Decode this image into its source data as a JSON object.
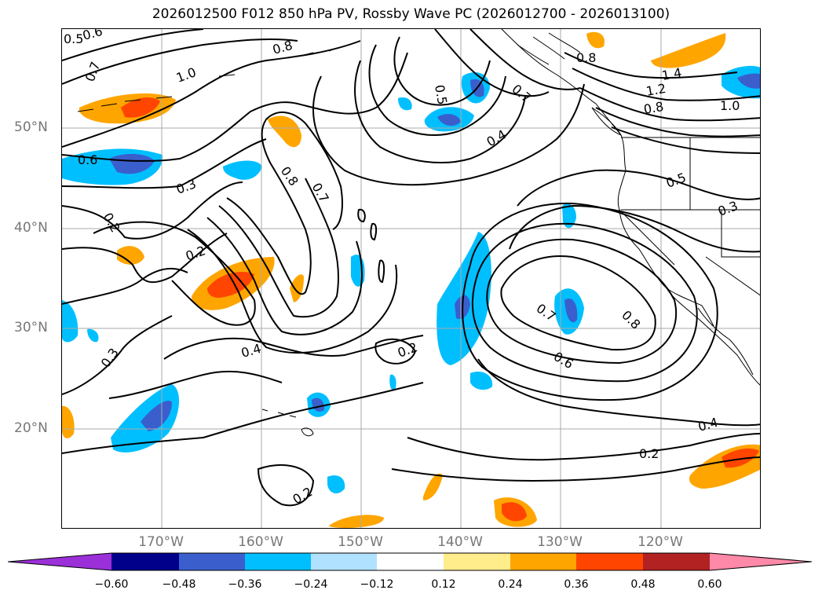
{
  "title": "2026012500 F012 850 hPa PV, Rossby Wave PC (2026012700 - 2026013100)",
  "map": {
    "latitude_labels": [
      "50°N",
      "40°N",
      "30°N",
      "20°N"
    ],
    "longitude_labels": [
      "170°W",
      "160°W",
      "150°W",
      "140°W",
      "130°W",
      "120°W"
    ],
    "contour_labels": [
      "0.5",
      "0.6",
      "0.7",
      "1.0",
      "0.8",
      "0.6",
      "0.3",
      "0.2",
      "0.2",
      "0.8",
      "0.7",
      "0.3",
      "0.4",
      "0.2",
      "0.5",
      "0.7",
      "0.4",
      "0.8",
      "1.4",
      "1.2",
      "0.8",
      "1.0",
      "0.5",
      "0.3",
      "0.7",
      "0.8",
      "0.6",
      "0.4",
      "0.2",
      "0.2"
    ]
  },
  "colorbar": {
    "tick_labels": [
      "−0.60",
      "−0.48",
      "−0.36",
      "−0.24",
      "−0.12",
      "0.12",
      "0.24",
      "0.36",
      "0.48",
      "0.60"
    ],
    "colors": [
      "#9b30d9",
      "#00008b",
      "#3a5fcd",
      "#00bfff",
      "#b0e2ff",
      "#ffffff",
      "#ffec8b",
      "#ffa500",
      "#ff4500",
      "#b22222",
      "#ff89a8"
    ]
  },
  "colors": {
    "grid": "#aaaaaa",
    "axis_label": "#777777",
    "contour": "#000000"
  }
}
